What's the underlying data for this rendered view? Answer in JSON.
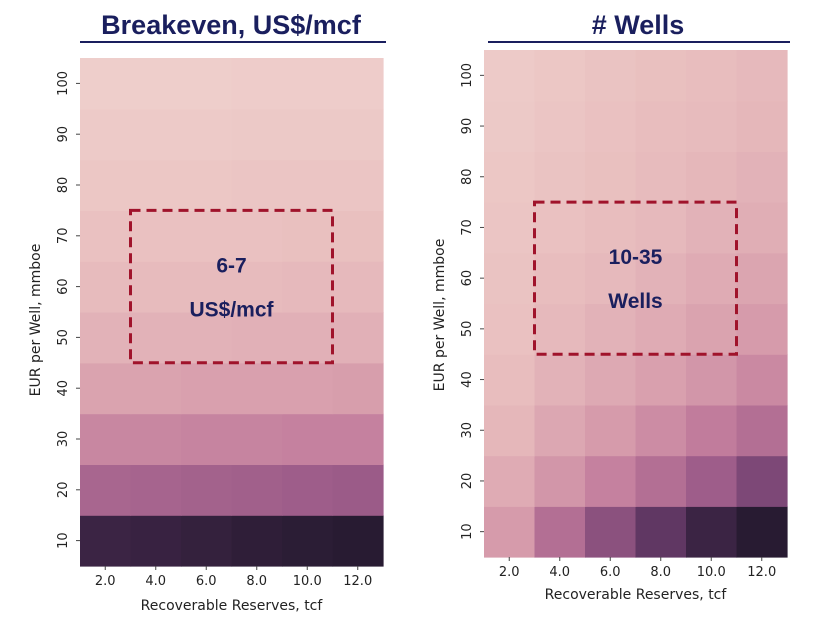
{
  "chart_data": [
    {
      "type": "heatmap",
      "title": "Breakeven, US$/mcf",
      "xlabel": "Recoverable Reserves, tcf",
      "ylabel": "EUR per Well, mmboe",
      "x": [
        "2.0",
        "4.0",
        "6.0",
        "8.0",
        "10.0",
        "12.0"
      ],
      "y": [
        10,
        20,
        30,
        40,
        50,
        60,
        70,
        80,
        90,
        100
      ],
      "ytick_labels": [
        "10",
        "20",
        "30",
        "40",
        "50",
        "60",
        "70",
        "80",
        "90",
        "100"
      ],
      "values": [
        [
          0.88,
          0.9,
          0.92,
          0.95,
          0.97,
          0.99
        ],
        [
          0.52,
          0.53,
          0.54,
          0.55,
          0.56,
          0.57
        ],
        [
          0.38,
          0.38,
          0.39,
          0.39,
          0.4,
          0.4
        ],
        [
          0.27,
          0.27,
          0.28,
          0.28,
          0.28,
          0.29
        ],
        [
          0.2,
          0.2,
          0.2,
          0.21,
          0.21,
          0.21
        ],
        [
          0.16,
          0.16,
          0.16,
          0.16,
          0.17,
          0.17
        ],
        [
          0.13,
          0.13,
          0.13,
          0.13,
          0.14,
          0.14
        ],
        [
          0.1,
          0.1,
          0.1,
          0.11,
          0.11,
          0.11
        ],
        [
          0.08,
          0.08,
          0.08,
          0.09,
          0.09,
          0.09
        ],
        [
          0.06,
          0.06,
          0.06,
          0.07,
          0.07,
          0.07
        ]
      ],
      "annotation": {
        "line1": "6-7",
        "line2": "US$/mcf",
        "x_range": [
          "4.0",
          "10.0"
        ],
        "y_range": [
          50,
          70
        ]
      }
    },
    {
      "type": "heatmap",
      "title": "# Wells",
      "xlabel": "Recoverable Reserves, tcf",
      "ylabel": "EUR per Well, mmboe",
      "x": [
        "2.0",
        "4.0",
        "6.0",
        "8.0",
        "10.0",
        "12.0"
      ],
      "y": [
        10,
        20,
        30,
        40,
        50,
        60,
        70,
        80,
        90,
        100
      ],
      "ytick_labels": [
        "10",
        "20",
        "30",
        "40",
        "50",
        "60",
        "70",
        "80",
        "90",
        "100"
      ],
      "values": [
        [
          0.3,
          0.48,
          0.62,
          0.75,
          0.88,
          0.99
        ],
        [
          0.23,
          0.32,
          0.4,
          0.48,
          0.56,
          0.66
        ],
        [
          0.18,
          0.25,
          0.3,
          0.36,
          0.42,
          0.48
        ],
        [
          0.15,
          0.2,
          0.24,
          0.28,
          0.32,
          0.37
        ],
        [
          0.13,
          0.17,
          0.2,
          0.23,
          0.27,
          0.3
        ],
        [
          0.12,
          0.15,
          0.17,
          0.2,
          0.23,
          0.26
        ],
        [
          0.11,
          0.13,
          0.15,
          0.17,
          0.2,
          0.22
        ],
        [
          0.1,
          0.12,
          0.14,
          0.16,
          0.18,
          0.2
        ],
        [
          0.09,
          0.11,
          0.13,
          0.15,
          0.16,
          0.18
        ],
        [
          0.08,
          0.1,
          0.12,
          0.14,
          0.15,
          0.17
        ]
      ],
      "annotation": {
        "line1": "10-35",
        "line2": "Wells",
        "x_range": [
          "4.0",
          "10.0"
        ],
        "y_range": [
          50,
          70
        ]
      }
    }
  ],
  "colormap": [
    "#f2d9d4",
    "#e9bfbf",
    "#d89fad",
    "#c07a9b",
    "#9b5b88",
    "#6b3d6c",
    "#3f2648",
    "#261a30"
  ],
  "annotation_box_color": "#a0132b",
  "title_color": "#1a1f5e"
}
